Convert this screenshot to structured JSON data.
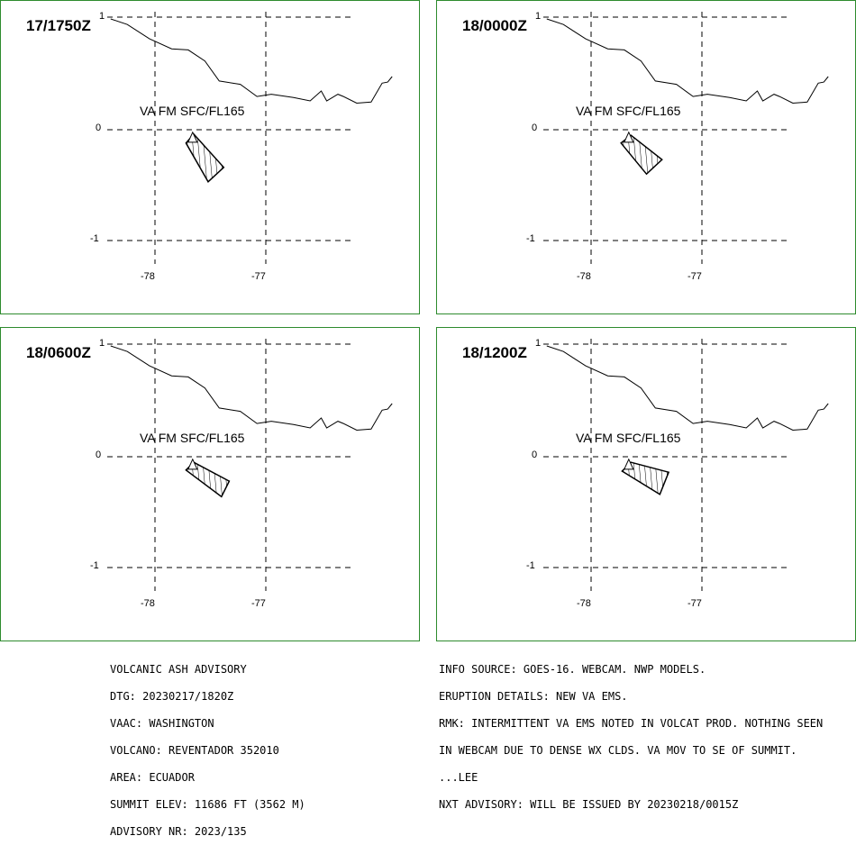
{
  "panels": [
    {
      "id": "p1",
      "time": "17/1750Z",
      "label": "VA FM SFC/FL165",
      "lat_ticks": [
        "0",
        "-1"
      ],
      "lon_ticks": [
        "-78",
        "-77"
      ],
      "corner_tick": "1",
      "ash_polygon": [
        [
          -77.65,
          -0.04
        ],
        [
          -77.38,
          -0.34
        ],
        [
          -77.52,
          -0.47
        ],
        [
          -77.72,
          -0.12
        ]
      ]
    },
    {
      "id": "p2",
      "time": "18/0000Z",
      "label": "VA FM SFC/FL165",
      "lat_ticks": [
        "0",
        "-1"
      ],
      "lon_ticks": [
        "-78",
        "-77"
      ],
      "corner_tick": "1",
      "ash_polygon": [
        [
          -77.64,
          -0.05
        ],
        [
          -77.36,
          -0.27
        ],
        [
          -77.5,
          -0.4
        ],
        [
          -77.73,
          -0.12
        ]
      ]
    },
    {
      "id": "p3",
      "time": "18/0600Z",
      "label": "VA FM SFC/FL165",
      "lat_ticks": [
        "0",
        "-1"
      ],
      "lon_ticks": [
        "-78",
        "-77"
      ],
      "corner_tick": "1",
      "ash_polygon": [
        [
          -77.65,
          -0.05
        ],
        [
          -77.33,
          -0.22
        ],
        [
          -77.4,
          -0.36
        ],
        [
          -77.72,
          -0.12
        ]
      ]
    },
    {
      "id": "p4",
      "time": "18/1200Z",
      "label": "VA FM SFC/FL165",
      "lat_ticks": [
        "0",
        "-1"
      ],
      "lon_ticks": [
        "-78",
        "-77"
      ],
      "corner_tick": "1",
      "ash_polygon": [
        [
          -77.64,
          -0.05
        ],
        [
          -77.3,
          -0.14
        ],
        [
          -77.38,
          -0.34
        ],
        [
          -77.72,
          -0.13
        ]
      ]
    }
  ],
  "volcano": {
    "lon": -77.66,
    "lat": -0.08
  },
  "coastline": [
    [
      -78.4,
      1.0
    ],
    [
      -78.25,
      0.95
    ],
    [
      -78.05,
      0.82
    ],
    [
      -77.85,
      0.73
    ],
    [
      -77.7,
      0.72
    ],
    [
      -77.55,
      0.62
    ],
    [
      -77.42,
      0.44
    ],
    [
      -77.23,
      0.41
    ],
    [
      -77.08,
      0.3
    ],
    [
      -76.95,
      0.32
    ],
    [
      -76.75,
      0.29
    ],
    [
      -76.6,
      0.26
    ],
    [
      -76.5,
      0.35
    ],
    [
      -76.45,
      0.26
    ],
    [
      -76.35,
      0.32
    ],
    [
      -76.3,
      0.3
    ],
    [
      -76.18,
      0.24
    ],
    [
      -76.05,
      0.25
    ],
    [
      -75.95,
      0.42
    ],
    [
      -75.9,
      0.43
    ],
    [
      -75.86,
      0.48
    ]
  ],
  "advisory_left": [
    "VOLCANIC ASH ADVISORY",
    "DTG: 20230217/1820Z",
    "VAAC: WASHINGTON",
    "VOLCANO: REVENTADOR 352010",
    "AREA: ECUADOR",
    "SUMMIT ELEV: 11686 FT (3562 M)",
    "ADVISORY NR: 2023/135"
  ],
  "advisory_right": [
    "INFO SOURCE: GOES-16. WEBCAM. NWP MODELS.",
    "ERUPTION DETAILS: NEW VA EMS.",
    "RMK: INTERMITTENT VA EMS NOTED IN VOLCAT PROD. NOTHING SEEN",
    "IN WEBCAM DUE TO DENSE WX CLDS. VA MOV TO SE OF SUMMIT.",
    "...LEE",
    "NXT ADVISORY: WILL BE ISSUED BY 20230218/0015Z"
  ],
  "colors": {
    "panel_border": "#2e8b2e",
    "lines": "#000000"
  }
}
